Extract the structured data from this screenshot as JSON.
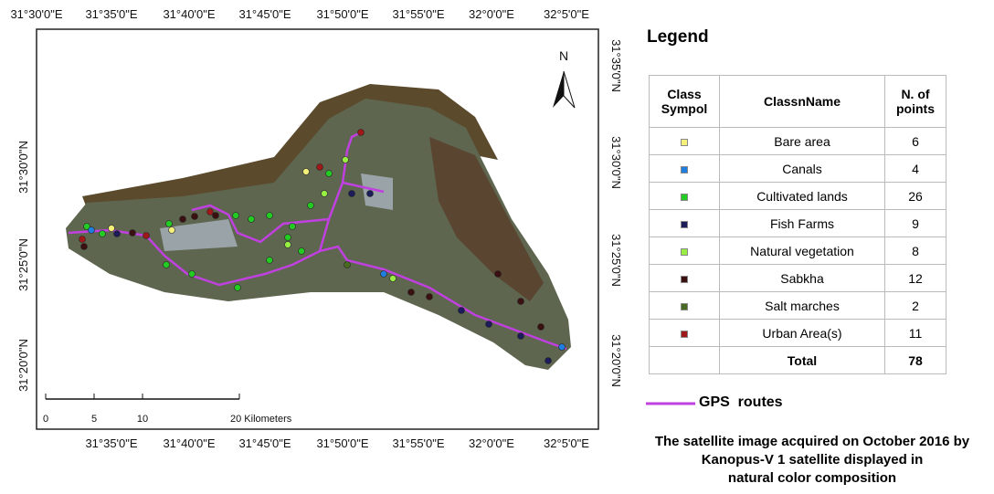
{
  "map": {
    "top_labels": [
      "31°30'0\"E",
      "31°35'0\"E",
      "31°40'0\"E",
      "31°45'0\"E",
      "31°50'0\"E",
      "31°55'0\"E",
      "32°0'0\"E",
      "32°5'0\"E"
    ],
    "bottom_labels": [
      "31°35'0\"E",
      "31°40'0\"E",
      "31°45'0\"E",
      "31°50'0\"E",
      "31°55'0\"E",
      "32°0'0\"E",
      "32°5'0\"E"
    ],
    "left_labels": [
      "31°30'0\"N",
      "31°25'0\"N",
      "31°20'0\"N"
    ],
    "right_labels": [
      "31°35'0\"N",
      "31°30'0\"N",
      "31°25'0\"N",
      "31°20'0\"N"
    ],
    "north": "N",
    "scale_labels": [
      "0",
      "5",
      "10",
      "20 Kilometers"
    ]
  },
  "legend": {
    "title": "Legend",
    "headers": [
      "Class Sympol",
      "ClassnName",
      "N. of points"
    ],
    "rows": [
      {
        "name": "Bare area",
        "count": 6,
        "color": "#f4f07a"
      },
      {
        "name": "Canals",
        "count": 4,
        "color": "#1f7fe0"
      },
      {
        "name": "Cultivated lands",
        "count": 26,
        "color": "#22cc22"
      },
      {
        "name": "Fish Farms",
        "count": 9,
        "color": "#1c1c5a"
      },
      {
        "name": "Natural vegetation",
        "count": 8,
        "color": "#99ee44"
      },
      {
        "name": "Sabkha",
        "count": 12,
        "color": "#3a1010"
      },
      {
        "name": "Salt marches",
        "count": 2,
        "color": "#4a6a20"
      },
      {
        "name": "Urban Area(s)",
        "count": 11,
        "color": "#a01818"
      }
    ],
    "total": {
      "label": "Total",
      "count": 78
    },
    "route_label": "GPS  routes"
  },
  "caption": [
    "The satellite image acquired on October 2016 by",
    "Kanopus-V 1 satellite displayed in",
    "natural color composition"
  ]
}
